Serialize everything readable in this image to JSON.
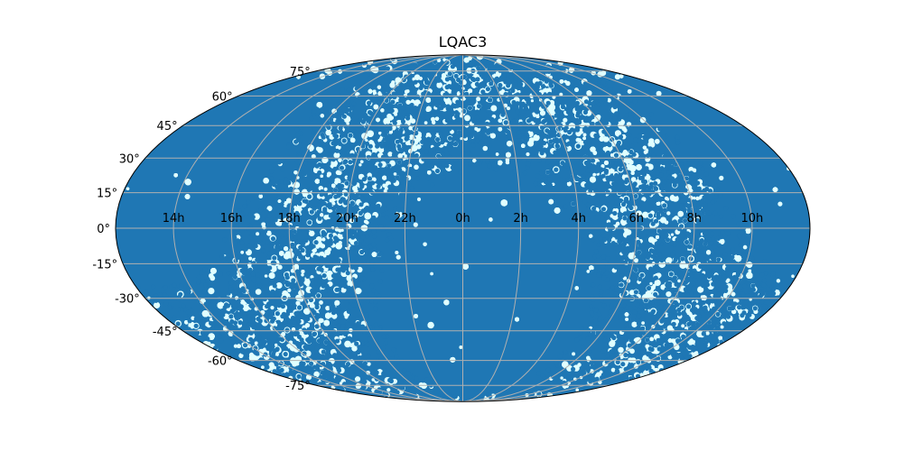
{
  "chart_data": {
    "type": "scatter",
    "projection": "mollweide",
    "title": "LQAC3",
    "xlabel": "",
    "ylabel": "",
    "grid": true,
    "colors": {
      "points": "#1f77b4",
      "background": "#e0ffff",
      "grid": "#b0b0b0",
      "frame": "#000000"
    },
    "x_tick_labels": [
      "10h",
      "8h",
      "6h",
      "4h",
      "2h",
      "0h",
      "22h",
      "20h",
      "18h",
      "16h",
      "14h"
    ],
    "x_tick_values_deg": [
      150,
      120,
      90,
      60,
      30,
      0,
      -30,
      -60,
      -90,
      -120,
      -150
    ],
    "y_tick_labels": [
      "-75°",
      "-60°",
      "-45°",
      "-30°",
      "-15°",
      "0°",
      "15°",
      "30°",
      "45°",
      "60°",
      "75°"
    ],
    "y_tick_values_deg": [
      -75,
      -60,
      -45,
      -30,
      -15,
      0,
      15,
      30,
      45,
      60,
      75
    ],
    "xlim_deg": [
      -180,
      180
    ],
    "ylim_deg": [
      -90,
      90
    ],
    "galactic_plane_gap": true,
    "approx_point_count": 4000
  }
}
